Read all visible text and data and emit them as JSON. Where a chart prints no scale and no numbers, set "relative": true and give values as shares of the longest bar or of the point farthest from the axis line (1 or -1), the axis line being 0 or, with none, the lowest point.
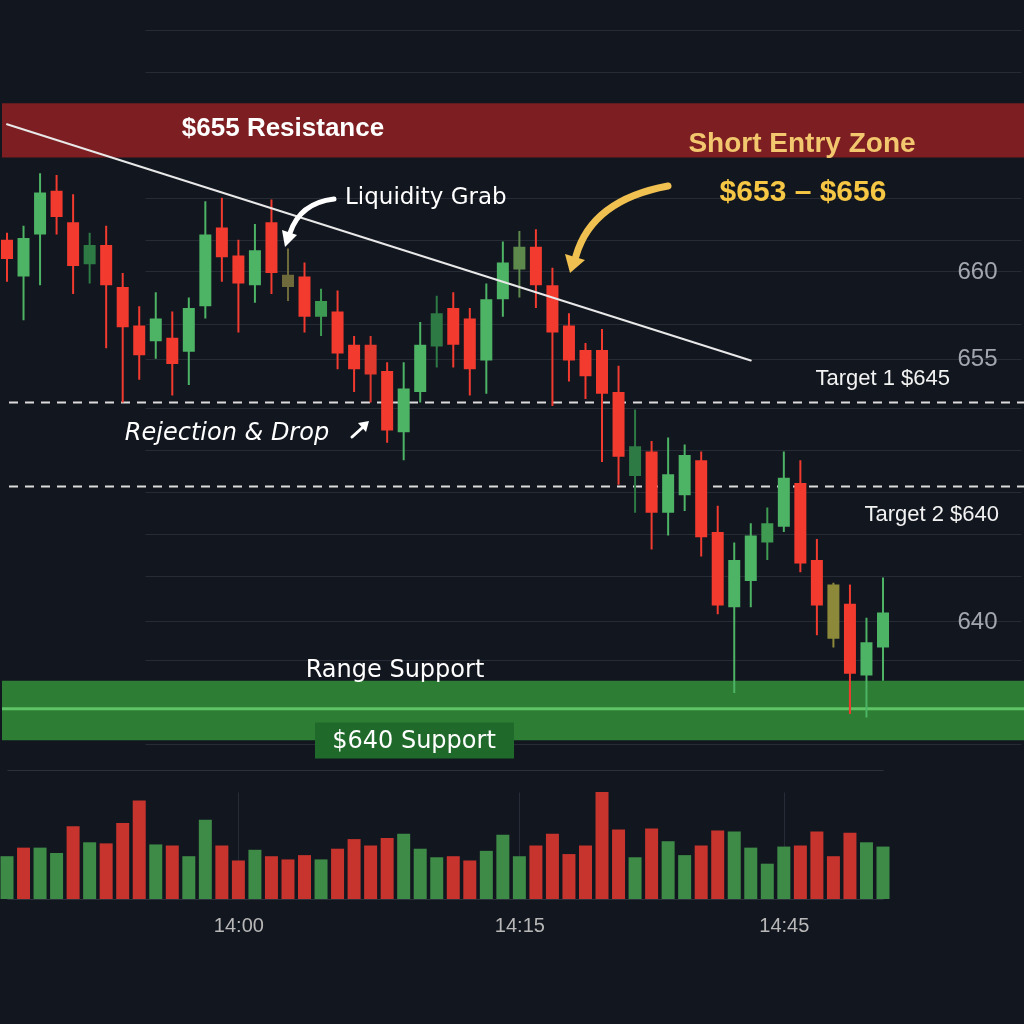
{
  "chart_data": [
    {
      "type": "candlestick",
      "categories": [
        null,
        null,
        null,
        null,
        null,
        null,
        null,
        null,
        null,
        null,
        null,
        null,
        null,
        null,
        null,
        null,
        null,
        null,
        null,
        null,
        null,
        null,
        null,
        null,
        null,
        null,
        null,
        null,
        null,
        null,
        null,
        null,
        null,
        null,
        null,
        null,
        null,
        null,
        null,
        null,
        null,
        null,
        null,
        null,
        null,
        null,
        null,
        null,
        null,
        null,
        null,
        null,
        null,
        null
      ],
      "ohlc": [
        [
          661.8,
          662.2,
          659.4,
          660.7
        ],
        [
          659.7,
          662.6,
          657.2,
          661.9
        ],
        [
          662.1,
          665.6,
          659.2,
          664.5
        ],
        [
          664.6,
          665.5,
          662.1,
          663.1
        ],
        [
          662.8,
          664.4,
          658.7,
          660.3
        ],
        [
          660.4,
          662.2,
          659.3,
          661.5
        ],
        [
          661.5,
          662.6,
          655.6,
          659.2
        ],
        [
          659.1,
          659.9,
          652.5,
          656.8
        ],
        [
          656.9,
          658.0,
          653.8,
          655.2
        ],
        [
          656.0,
          658.8,
          655.0,
          657.3
        ],
        [
          656.2,
          657.7,
          652.9,
          654.7
        ],
        [
          655.4,
          658.5,
          653.5,
          657.9
        ],
        [
          658.0,
          664.0,
          657.3,
          662.1
        ],
        [
          662.5,
          664.2,
          659.4,
          660.8
        ],
        [
          660.9,
          661.8,
          656.5,
          659.3
        ],
        [
          659.2,
          662.7,
          658.2,
          661.2
        ],
        [
          662.8,
          664.1,
          658.7,
          659.9
        ],
        [
          659.8,
          661.3,
          658.3,
          659.1
        ],
        [
          659.7,
          660.5,
          656.5,
          657.4
        ],
        [
          657.4,
          659.0,
          656.3,
          658.3
        ],
        [
          657.7,
          658.9,
          654.4,
          655.3
        ],
        [
          655.8,
          656.3,
          653.1,
          654.4
        ],
        [
          655.8,
          656.3,
          652.5,
          654.1
        ],
        [
          654.3,
          654.8,
          650.2,
          650.9
        ],
        [
          650.8,
          654.8,
          649.2,
          653.3
        ],
        [
          653.1,
          657.1,
          652.5,
          655.8
        ],
        [
          655.7,
          658.6,
          654.5,
          657.6
        ],
        [
          657.9,
          658.8,
          654.5,
          655.8
        ],
        [
          657.3,
          657.9,
          652.9,
          654.4
        ],
        [
          654.9,
          659.3,
          653.0,
          658.4
        ],
        [
          658.4,
          661.7,
          657.4,
          660.5
        ],
        [
          660.1,
          662.3,
          658.5,
          661.4
        ],
        [
          661.4,
          662.4,
          657.9,
          659.2
        ],
        [
          659.2,
          660.2,
          652.3,
          656.5
        ],
        [
          656.9,
          657.6,
          653.7,
          654.9
        ],
        [
          655.5,
          655.9,
          652.7,
          654.0
        ],
        [
          655.5,
          656.7,
          649.1,
          653.0
        ],
        [
          653.1,
          654.6,
          647.8,
          649.4
        ],
        [
          648.3,
          652.1,
          646.2,
          650.0
        ],
        [
          649.7,
          650.3,
          644.1,
          646.2
        ],
        [
          646.2,
          650.5,
          644.9,
          648.4
        ],
        [
          647.2,
          650.1,
          646.3,
          649.5
        ],
        [
          649.2,
          649.7,
          643.7,
          644.8
        ],
        [
          645.1,
          646.6,
          640.4,
          640.9
        ],
        [
          640.8,
          644.5,
          635.9,
          643.5
        ],
        [
          642.3,
          645.6,
          640.8,
          644.9
        ],
        [
          644.5,
          646.5,
          643.5,
          645.6
        ],
        [
          645.4,
          649.7,
          645.1,
          648.2
        ],
        [
          647.9,
          649.2,
          642.8,
          643.3
        ],
        [
          643.5,
          644.7,
          639.2,
          640.9
        ],
        [
          642.1,
          642.2,
          638.5,
          639.0
        ],
        [
          641.0,
          642.1,
          634.7,
          637.0
        ],
        [
          636.9,
          640.2,
          634.5,
          638.8
        ],
        [
          638.5,
          642.5,
          636.6,
          640.5
        ]
      ],
      "colors": [
        "#f23a2f",
        "#4db365",
        "#4db365",
        "#f23a2f",
        "#f23a2f",
        "#2e7a45",
        "#f23a2f",
        "#f23a2f",
        "#f23a2f",
        "#4db365",
        "#f23a2f",
        "#4db365",
        "#4db365",
        "#f23a2f",
        "#f23a2f",
        "#4db365",
        "#f23a2f",
        "#6f6a3c",
        "#f23a2f",
        "#3d9a52",
        "#f23a2f",
        "#f23a2f",
        "#e0392e",
        "#f23a2f",
        "#4db365",
        "#4db365",
        "#2e7a45",
        "#f23a2f",
        "#f23a2f",
        "#4db365",
        "#4db365",
        "#5d8a4c",
        "#f23a2f",
        "#f23a2f",
        "#f23a2f",
        "#f23a2f",
        "#f23a2f",
        "#f23a2f",
        "#2e7a45",
        "#f23a2f",
        "#4db365",
        "#4db365",
        "#f23a2f",
        "#f23a2f",
        "#4db365",
        "#4db365",
        "#3f9a52",
        "#4db365",
        "#f23a2f",
        "#f23a2f",
        "#8c8a3a",
        "#f23a2f",
        "#4db365",
        "#4db365"
      ],
      "series": [
        {
          "type": "line",
          "color": "#e8e8e8",
          "values": [
            668.4,
            668.1,
            667.8,
            667.5,
            667.2,
            666.9,
            666.6,
            666.3,
            666.0,
            665.7,
            665.4,
            665.1,
            664.8,
            664.5,
            664.2,
            663.9,
            663.6,
            663.3,
            663.0,
            662.7,
            662.4,
            662.1,
            661.8,
            661.5,
            661.2,
            660.9,
            660.6,
            660.3,
            660.0,
            659.7,
            659.4,
            659.1,
            658.8,
            658.5,
            658.2,
            657.9,
            657.6,
            657.3,
            657.0,
            656.7,
            656.4,
            656.1,
            655.8,
            655.5,
            655.2,
            654.9,
            null,
            null,
            null,
            null,
            null,
            null,
            null,
            null
          ]
        }
      ],
      "ylim": [
        631.5,
        675.5
      ],
      "yticks": [
        {
          "value": 673.8,
          "label": null
        },
        {
          "value": 671.4,
          "label": null
        },
        {
          "value": 664.2,
          "label": null
        },
        {
          "value": 661.8,
          "label": null
        },
        660,
        {
          "value": 657.0,
          "label": null
        },
        655,
        {
          "value": 652.2,
          "label": null
        },
        {
          "value": 649.8,
          "label": null
        },
        {
          "value": 647.4,
          "label": null
        },
        {
          "value": 645.0,
          "label": null
        },
        {
          "value": 642.6,
          "label": null
        },
        640,
        {
          "value": 637.8,
          "label": null
        },
        {
          "value": 633.0,
          "label": null
        }
      ],
      "grid": "y",
      "tick_labels": "y",
      "bands": [
        {
          "axis": "y",
          "from": 666.5,
          "to": 669.6,
          "label": "$655 Resistance",
          "color": "#7d1f22"
        },
        {
          "axis": "y",
          "from": 633.2,
          "to": 636.6,
          "label": "$640 Support",
          "color": "#2e7d34"
        }
      ],
      "ref_lines": [
        {
          "axis": "y",
          "value": 652.5,
          "label": "Target 1 $645",
          "color": "#dcdcdc",
          "line_style": "dashed"
        },
        {
          "axis": "y",
          "value": 647.7,
          "label": "Target 2 $640",
          "color": "#dcdcdc",
          "line_style": "dashed"
        },
        {
          "axis": "y",
          "value": 635.0,
          "color": "#5fc466",
          "line_style": "solid"
        }
      ],
      "annotations": [
        "Liquidity Grab",
        "Short Entry Zone",
        "$653 – $656",
        "Rejection & Drop",
        "Range Support"
      ]
    },
    {
      "type": "bar",
      "relative": true,
      "categories": [
        null,
        null,
        null,
        null,
        null,
        null,
        null,
        null,
        null,
        null,
        null,
        null,
        null,
        null,
        "14:00",
        null,
        null,
        null,
        null,
        null,
        null,
        null,
        null,
        null,
        null,
        null,
        null,
        null,
        null,
        null,
        null,
        "14:15",
        null,
        null,
        null,
        null,
        null,
        null,
        null,
        null,
        null,
        null,
        null,
        null,
        null,
        null,
        null,
        "14:45",
        null,
        null,
        null,
        null,
        null,
        null
      ],
      "values": [
        0.4,
        0.48,
        0.48,
        0.43,
        0.68,
        0.53,
        0.52,
        0.71,
        0.92,
        0.51,
        0.5,
        0.4,
        0.74,
        0.5,
        0.36,
        0.46,
        0.4,
        0.37,
        0.41,
        0.37,
        0.47,
        0.56,
        0.5,
        0.57,
        0.61,
        0.47,
        0.39,
        0.4,
        0.36,
        0.45,
        0.6,
        0.4,
        0.5,
        0.61,
        0.42,
        0.5,
        1,
        0.65,
        0.39,
        0.66,
        0.54,
        0.41,
        0.5,
        0.64,
        0.63,
        0.48,
        0.33,
        0.49,
        0.5,
        0.63,
        0.4,
        0.62,
        0.53,
        0.49
      ],
      "colors": [
        "#3e8b47",
        "#c6342d",
        "#3e8b47",
        "#3e8b47",
        "#c6342d",
        "#3e8b47",
        "#c6342d",
        "#c6342d",
        "#c6342d",
        "#3e8b47",
        "#c6342d",
        "#3e8b47",
        "#3e8b47",
        "#c6342d",
        "#c6342d",
        "#3e8b47",
        "#c6342d",
        "#c6342d",
        "#c6342d",
        "#3e8b47",
        "#c6342d",
        "#c6342d",
        "#c6342d",
        "#c6342d",
        "#3e8b47",
        "#3e8b47",
        "#3e8b47",
        "#c6342d",
        "#c6342d",
        "#3e8b47",
        "#3e8b47",
        "#3e8b47",
        "#c6342d",
        "#c6342d",
        "#c6342d",
        "#c6342d",
        "#c6342d",
        "#c6342d",
        "#3e8b47",
        "#c6342d",
        "#3e8b47",
        "#3e8b47",
        "#c6342d",
        "#c6342d",
        "#3e8b47",
        "#3e8b47",
        "#3e8b47",
        "#3e8b47",
        "#c6342d",
        "#c6342d",
        "#c6342d",
        "#c6342d",
        "#3e8b47",
        "#3e8b47"
      ],
      "grid": "x",
      "tick_labels": "x"
    }
  ]
}
